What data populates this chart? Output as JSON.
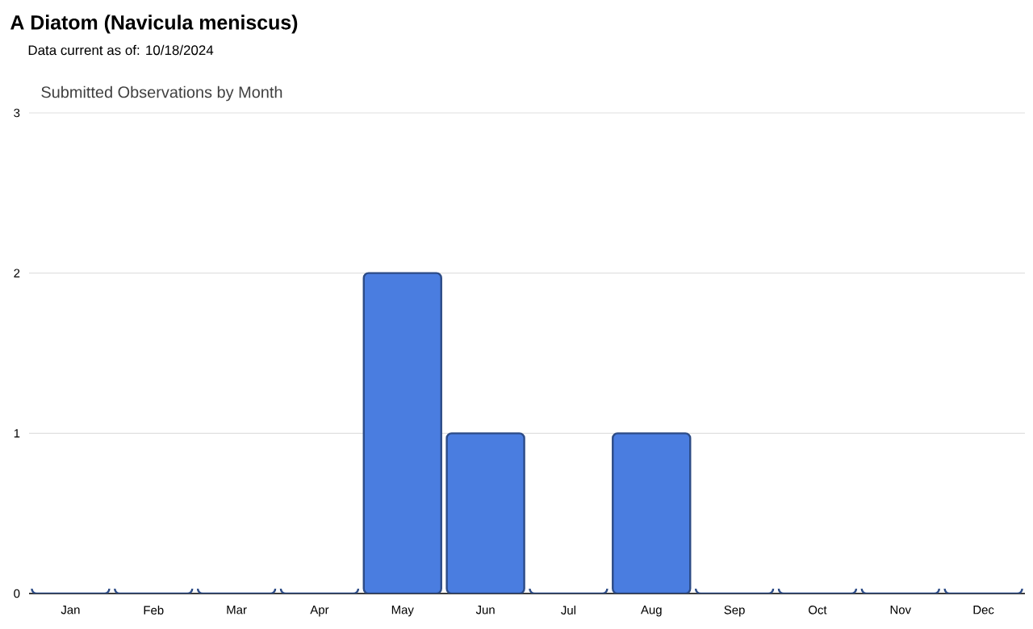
{
  "chart_data": {
    "type": "bar",
    "title": "A Diatom   (Navicula meniscus)",
    "subtitle": "Data current as of: 10/18/2024",
    "annotations": [
      "Submitted Observations by Month"
    ],
    "categories": [
      "Jan",
      "Feb",
      "Mar",
      "Apr",
      "May",
      "Jun",
      "Jul",
      "Aug",
      "Sep",
      "Oct",
      "Nov",
      "Dec"
    ],
    "values": [
      0,
      0,
      0,
      0,
      2,
      1,
      0,
      1,
      0,
      0,
      0,
      0
    ],
    "color": "#4a7de0",
    "ylim": [
      0,
      3
    ],
    "yticks": [
      0,
      1,
      2,
      3
    ],
    "grid": "y"
  }
}
